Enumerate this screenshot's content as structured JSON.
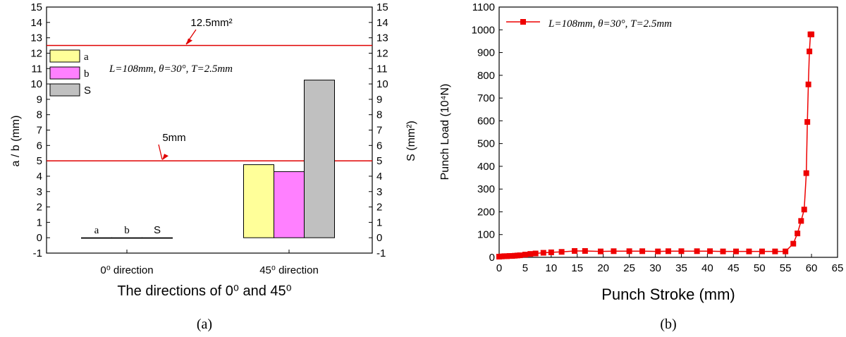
{
  "panel_labels": [
    "(a)",
    "(b)"
  ],
  "chart_data": [
    {
      "type": "bar",
      "categories": [
        "0⁰ direction",
        "45⁰ direction"
      ],
      "series": [
        {
          "name": "a",
          "values": [
            0,
            4.75
          ],
          "color": "#ffff99"
        },
        {
          "name": "b",
          "values": [
            0,
            4.3
          ],
          "color": "#ff80ff"
        },
        {
          "name": "S",
          "values": [
            0,
            10.25
          ],
          "color": "#c0c0c0"
        }
      ],
      "xlabel": "The directions of 0⁰ and 45⁰",
      "ylabel": "a / b (mm)",
      "ylabel_right": "S (mm²)",
      "ylim": [
        -1,
        15
      ],
      "yticks": [
        -1,
        0,
        1,
        2,
        3,
        4,
        5,
        6,
        7,
        8,
        9,
        10,
        11,
        12,
        13,
        14,
        15
      ],
      "reference_lines": [
        {
          "value": 12.5,
          "label": "12.5mm²",
          "color": "#e00000"
        },
        {
          "value": 5,
          "label": "5mm",
          "color": "#e00000"
        }
      ],
      "bar_labels": [
        "a",
        "b",
        "S"
      ],
      "annotation": "L=108mm, θ=30°, T=2.5mm",
      "legend_position": "top-left",
      "grid": false
    },
    {
      "type": "line",
      "series": [
        {
          "name": "L=108mm, θ=30°, T=2.5mm",
          "color": "#ee0000",
          "x": [
            0,
            0.5,
            1,
            1.5,
            2,
            2.5,
            3,
            3.5,
            4,
            5,
            6,
            7,
            8.5,
            10,
            12,
            14.5,
            16.5,
            19.5,
            22,
            25,
            27.5,
            30.5,
            32.5,
            35,
            38,
            40.5,
            43,
            45.5,
            48,
            50.5,
            53,
            55,
            56.5,
            57.3,
            58,
            58.6,
            59,
            59.2,
            59.4,
            59.6,
            59.8,
            60
          ],
          "y": [
            3,
            4,
            5,
            5,
            6,
            6,
            7,
            8,
            9,
            12,
            15,
            17,
            20,
            22,
            24,
            28,
            28,
            26,
            27,
            27,
            27,
            26,
            27,
            27,
            27,
            27,
            26,
            26,
            26,
            26,
            26,
            26,
            60,
            105,
            160,
            210,
            370,
            595,
            760,
            905,
            980,
            980
          ]
        }
      ],
      "xlabel": "Punch Stroke (mm)",
      "ylabel": "Punch Load (10⁴N)",
      "xlim": [
        0,
        65
      ],
      "ylim": [
        0,
        1100
      ],
      "xticks": [
        0,
        5,
        10,
        15,
        20,
        25,
        30,
        35,
        40,
        45,
        50,
        55,
        60,
        65
      ],
      "yticks": [
        0,
        100,
        200,
        300,
        400,
        500,
        600,
        700,
        800,
        900,
        1000,
        1100
      ],
      "legend_position": "top-left",
      "grid": false
    }
  ]
}
